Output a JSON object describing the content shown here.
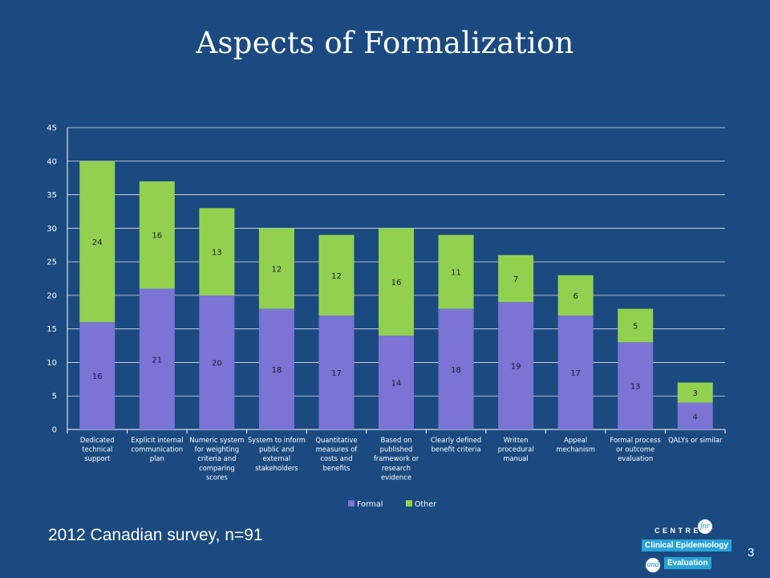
{
  "slide": {
    "title": "Aspects of Formalization",
    "footnote": "2012 Canadian survey, n=91",
    "page_number": "3"
  },
  "logo": {
    "line1": "CENTRE",
    "for": "for",
    "line2": "Clinical Epidemiology",
    "and": "and",
    "line3": "Evaluation"
  },
  "colors": {
    "background": "#1a4a80",
    "formal": "#7b74d4",
    "other": "#92d050",
    "gridline": "#ffffff",
    "text": "#ffffff"
  },
  "chart_data": {
    "type": "bar",
    "stacked": true,
    "title": "",
    "xlabel": "",
    "ylabel": "",
    "ylim": [
      0,
      45
    ],
    "yticks": [
      0,
      5,
      10,
      15,
      20,
      25,
      30,
      35,
      40,
      45
    ],
    "grid": true,
    "legend_position": "bottom",
    "categories": [
      [
        "Dedicated",
        "technical",
        "support"
      ],
      [
        "Explicit internal",
        "communication",
        "plan"
      ],
      [
        "Numeric system",
        "for weighting",
        "criteria and",
        "comparing",
        "scores"
      ],
      [
        "System to inform",
        "public and",
        "external",
        "stakeholders"
      ],
      [
        "Quantitative",
        "measures of",
        "costs and",
        "benefits"
      ],
      [
        "Based on",
        "published",
        "framework or",
        "research",
        "evidence"
      ],
      [
        "Clearly defined",
        "benefit criteria"
      ],
      [
        "Written",
        "procedural",
        "manual"
      ],
      [
        "Appeal",
        "mechanism"
      ],
      [
        "Formal process",
        "or outcome",
        "evaluation"
      ],
      [
        "QALYs or similar"
      ]
    ],
    "series": [
      {
        "name": "Formal",
        "color": "#7b74d4",
        "values": [
          16,
          21,
          20,
          18,
          17,
          14,
          18,
          19,
          17,
          13,
          4
        ]
      },
      {
        "name": "Other",
        "color": "#92d050",
        "values": [
          24,
          16,
          13,
          12,
          12,
          16,
          11,
          7,
          6,
          5,
          3
        ]
      }
    ]
  }
}
